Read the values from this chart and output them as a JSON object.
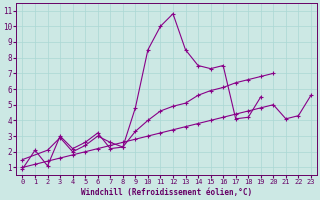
{
  "xlabel": "Windchill (Refroidissement éolien,°C)",
  "bg_color": "#cce8e4",
  "line_color": "#880088",
  "grid_color": "#aad8d4",
  "spine_color": "#660066",
  "xlim": [
    -0.5,
    23.5
  ],
  "ylim": [
    0.5,
    11.5
  ],
  "xticks": [
    0,
    1,
    2,
    3,
    4,
    5,
    6,
    7,
    8,
    9,
    10,
    11,
    12,
    13,
    14,
    15,
    16,
    17,
    18,
    19,
    20,
    21,
    22,
    23
  ],
  "yticks": [
    1,
    2,
    3,
    4,
    5,
    6,
    7,
    8,
    9,
    10,
    11
  ],
  "series1_x": [
    0,
    1,
    2,
    3,
    4,
    5,
    6,
    7,
    8,
    9,
    10,
    11,
    12,
    13,
    14,
    15,
    16,
    17,
    18,
    19
  ],
  "series1_y": [
    0.9,
    2.1,
    1.1,
    3.0,
    2.2,
    2.6,
    3.2,
    2.2,
    2.3,
    4.8,
    8.5,
    10.0,
    10.8,
    8.5,
    7.5,
    7.3,
    7.5,
    4.1,
    4.2,
    5.5
  ],
  "series2_x": [
    0,
    2,
    3,
    4,
    5,
    6,
    7,
    8,
    9,
    10,
    11,
    12,
    13,
    14,
    15,
    16,
    17,
    18,
    19,
    20
  ],
  "series2_y": [
    1.5,
    2.1,
    2.9,
    2.0,
    2.4,
    3.0,
    2.6,
    2.3,
    3.3,
    4.0,
    4.6,
    4.9,
    5.1,
    5.6,
    5.9,
    6.1,
    6.4,
    6.6,
    6.8,
    7.0
  ],
  "series3_x": [
    0,
    1,
    2,
    3,
    4,
    5,
    6,
    7,
    8,
    9,
    10,
    11,
    12,
    13,
    14,
    15,
    16,
    17,
    18,
    19,
    20,
    21,
    22,
    23
  ],
  "series3_y": [
    1.0,
    1.2,
    1.4,
    1.6,
    1.8,
    2.0,
    2.2,
    2.4,
    2.6,
    2.8,
    3.0,
    3.2,
    3.4,
    3.6,
    3.8,
    4.0,
    4.2,
    4.4,
    4.6,
    4.8,
    5.0,
    4.1,
    4.3,
    5.6
  ],
  "markersize": 2.5,
  "linewidth": 0.8
}
